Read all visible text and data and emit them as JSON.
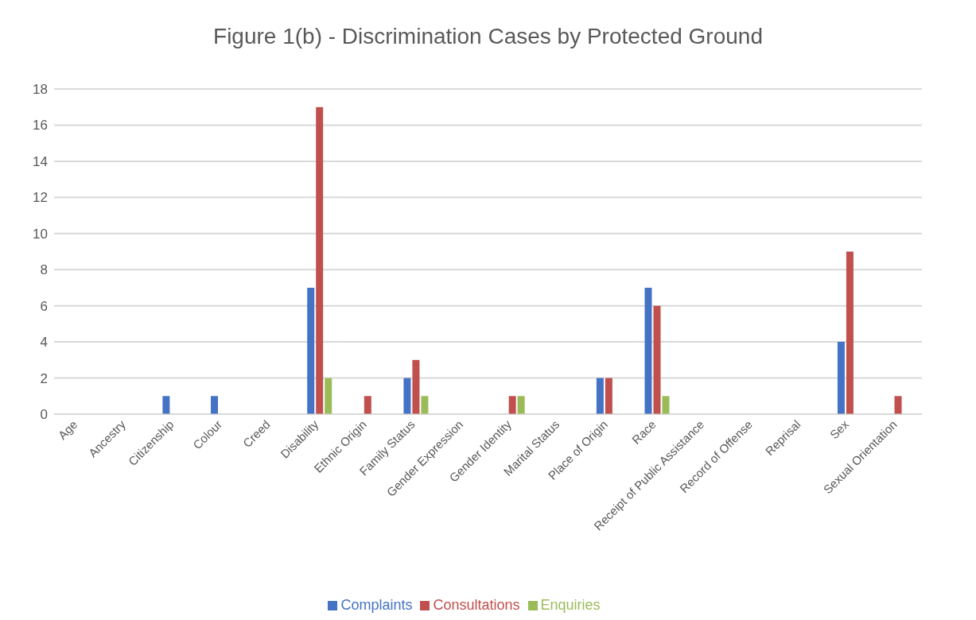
{
  "chart_data": {
    "type": "bar",
    "title": "Figure 1(b) - Discrimination Cases by Protected Ground",
    "categories": [
      "Age",
      "Ancestry",
      "Citizenship",
      "Colour",
      "Creed",
      "Disability",
      "Ethnic Origin",
      "Family Status",
      "Gender Expression",
      "Gender Identity",
      "Marital Status",
      "Place of Origin",
      "Race",
      "Receipt of Public Assistance",
      "Record of Offense",
      "Reprisal",
      "Sex",
      "Sexual Orientation"
    ],
    "series": [
      {
        "name": "Complaints",
        "color": "#4472c4",
        "values": [
          0,
          0,
          1,
          1,
          0,
          7,
          0,
          2,
          0,
          0,
          0,
          2,
          7,
          0,
          0,
          0,
          4,
          0
        ]
      },
      {
        "name": "Consultations",
        "color": "#c0504d",
        "values": [
          0,
          0,
          0,
          0,
          0,
          17,
          1,
          3,
          0,
          1,
          0,
          2,
          6,
          0,
          0,
          0,
          9,
          1
        ]
      },
      {
        "name": "Enquiries",
        "color": "#9bbb59",
        "values": [
          0,
          0,
          0,
          0,
          0,
          2,
          0,
          1,
          0,
          1,
          0,
          0,
          1,
          0,
          0,
          0,
          0,
          0
        ]
      }
    ],
    "ylim": [
      0,
      18
    ],
    "yticks": [
      0,
      2,
      4,
      6,
      8,
      10,
      12,
      14,
      16,
      18
    ],
    "grid": "y",
    "legend": "bottom"
  }
}
